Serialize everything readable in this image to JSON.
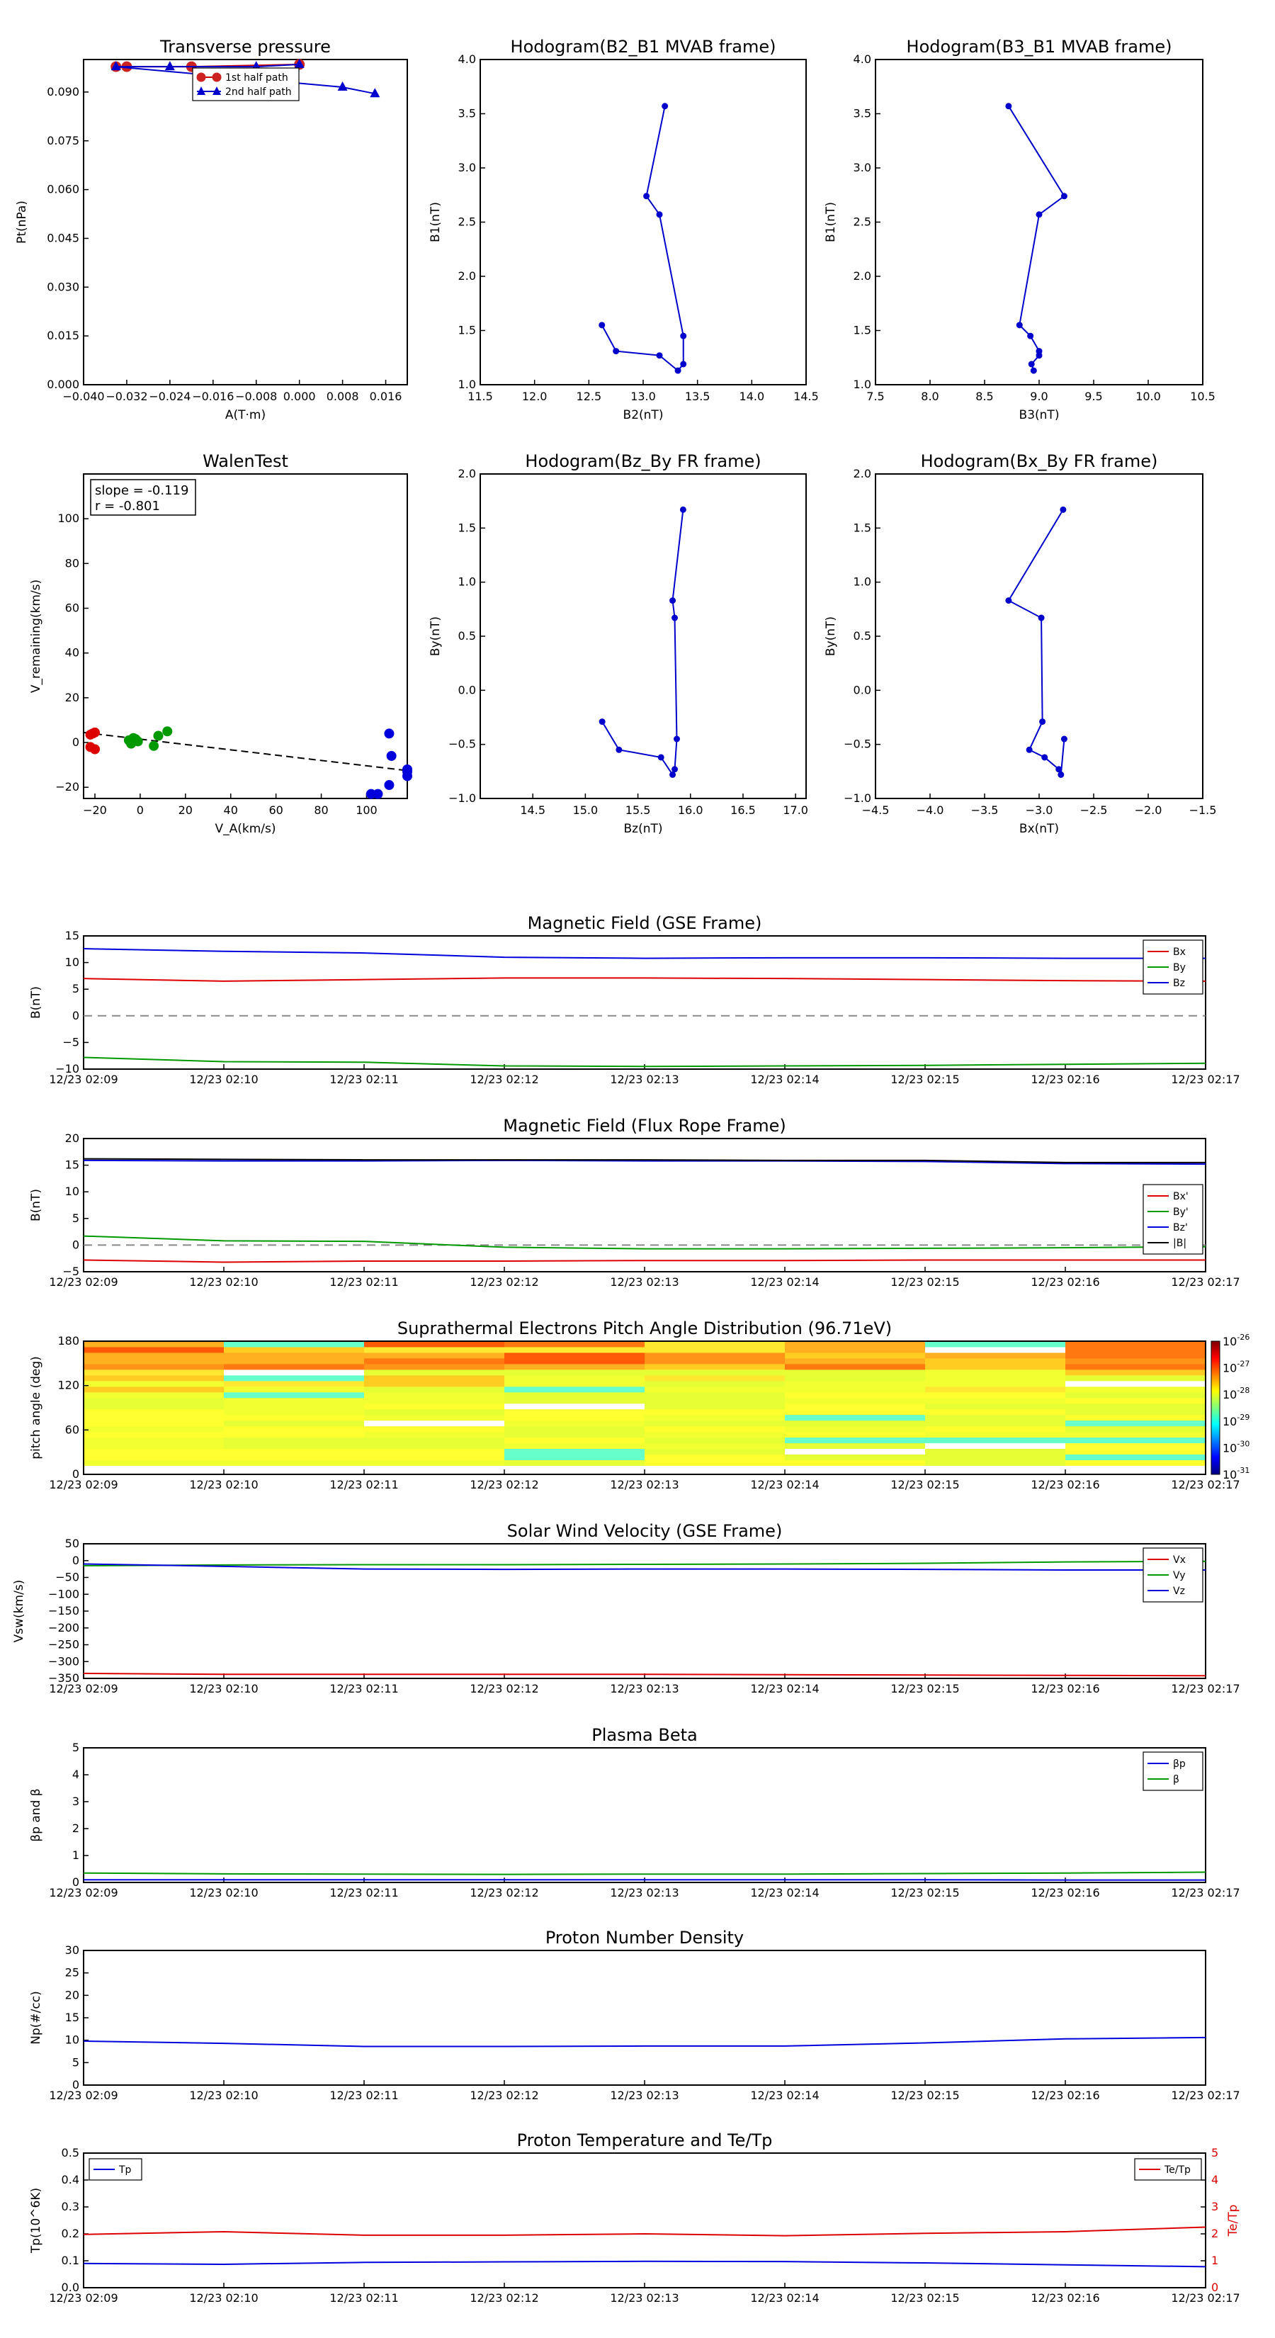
{
  "time_ticks": [
    "12/23 02:09",
    "12/23 02:10",
    "12/23 02:11",
    "12/23 02:12",
    "12/23 02:13",
    "12/23 02:14",
    "12/23 02:15",
    "12/23 02:16",
    "12/23 02:17"
  ],
  "chart_data": [
    {
      "id": "transverse-pressure",
      "type": "line",
      "title": "Transverse pressure",
      "xlabel": "A(T·m)",
      "ylabel": "Pt(nPa)",
      "xlim": [
        -0.04,
        0.02
      ],
      "ylim": [
        0.0,
        0.1
      ],
      "xticks": [
        "−0.040",
        "−0.032",
        "−0.024",
        "−0.016",
        "−0.008",
        "0.000",
        "0.008",
        "0.016"
      ],
      "yticks": [
        "0.000",
        "0.015",
        "0.030",
        "0.045",
        "0.060",
        "0.075",
        "0.090"
      ],
      "legend_position": "upper-center",
      "series": [
        {
          "name": "1st half path",
          "color": "#cc0000",
          "marker": "circle",
          "points": [
            [
              -0.034,
              0.0978
            ],
            [
              -0.032,
              0.0978
            ],
            [
              -0.02,
              0.0978
            ],
            [
              0.0,
              0.0985
            ]
          ]
        },
        {
          "name": "2nd half path",
          "color": "#0000cc",
          "marker": "triangle",
          "points": [
            [
              0.0,
              0.0985
            ],
            [
              -0.008,
              0.0978
            ],
            [
              -0.024,
              0.0978
            ],
            [
              -0.034,
              0.0978
            ],
            [
              0.008,
              0.0915
            ],
            [
              0.014,
              0.0895
            ]
          ]
        }
      ]
    },
    {
      "id": "hodogram-b2-b1",
      "type": "line",
      "title": "Hodogram(B2_B1 MVAB frame)",
      "xlabel": "B2(nT)",
      "ylabel": "B1(nT)",
      "xlim": [
        11.5,
        14.5
      ],
      "ylim": [
        1.0,
        4.0
      ],
      "xticks": [
        "11.5",
        "12.0",
        "12.5",
        "13.0",
        "13.5",
        "14.0",
        "14.5"
      ],
      "yticks": [
        "1.0",
        "1.5",
        "2.0",
        "2.5",
        "3.0",
        "3.5",
        "4.0"
      ],
      "color": "#0000cc",
      "points": [
        [
          13.2,
          3.57
        ],
        [
          13.03,
          2.74
        ],
        [
          13.15,
          2.57
        ],
        [
          13.37,
          1.45
        ],
        [
          13.37,
          1.19
        ],
        [
          13.32,
          1.13
        ],
        [
          13.15,
          1.27
        ],
        [
          12.75,
          1.31
        ],
        [
          12.62,
          1.55
        ]
      ]
    },
    {
      "id": "hodogram-b3-b1",
      "type": "line",
      "title": "Hodogram(B3_B1 MVAB frame)",
      "xlabel": "B3(nT)",
      "ylabel": "B1(nT)",
      "xlim": [
        7.5,
        10.5
      ],
      "ylim": [
        1.0,
        4.0
      ],
      "xticks": [
        "7.5",
        "8.0",
        "8.5",
        "9.0",
        "9.5",
        "10.0",
        "10.5"
      ],
      "yticks": [
        "1.0",
        "1.5",
        "2.0",
        "2.5",
        "3.0",
        "3.5",
        "4.0"
      ],
      "color": "#0000cc",
      "points": [
        [
          8.72,
          3.57
        ],
        [
          9.23,
          2.74
        ],
        [
          9.0,
          2.57
        ],
        [
          8.82,
          1.55
        ],
        [
          8.92,
          1.45
        ],
        [
          9.0,
          1.31
        ],
        [
          9.0,
          1.27
        ],
        [
          8.93,
          1.19
        ],
        [
          8.95,
          1.13
        ]
      ]
    },
    {
      "id": "walen-test",
      "type": "scatter",
      "title": "WalenTest",
      "xlabel": "V_A(km/s)",
      "ylabel": "V_remaining(km/s)",
      "xlim": [
        -25,
        118
      ],
      "ylim": [
        -25,
        120
      ],
      "xticks": [
        "−20",
        "0",
        "20",
        "40",
        "60",
        "80",
        "100"
      ],
      "yticks": [
        "−20",
        "0",
        "20",
        "40",
        "60",
        "80",
        "100"
      ],
      "annotation": [
        "slope = -0.119",
        "r = -0.801"
      ],
      "fit_line": {
        "slope": -0.119,
        "intercept": 1.5,
        "color": "#000000"
      },
      "series": [
        {
          "color": "#dd0000",
          "points": [
            [
              -22,
              3.5
            ],
            [
              -21,
              4
            ],
            [
              -20,
              4.5
            ],
            [
              -20,
              -3
            ],
            [
              -22,
              -2
            ]
          ]
        },
        {
          "color": "#009900",
          "points": [
            [
              -5,
              1
            ],
            [
              -4,
              -0.5
            ],
            [
              -3,
              2
            ],
            [
              -2,
              1.5
            ],
            [
              -1,
              0.5
            ],
            [
              -4,
              0
            ],
            [
              6,
              -1.5
            ],
            [
              8,
              3
            ],
            [
              12,
              5
            ]
          ]
        },
        {
          "color": "#0000dd",
          "points": [
            [
              102,
              -23
            ],
            [
              105,
              -23
            ],
            [
              110,
              4
            ],
            [
              111,
              -6
            ],
            [
              110,
              -19
            ],
            [
              118,
              -12
            ],
            [
              118,
              -13
            ],
            [
              118,
              -15
            ]
          ]
        }
      ]
    },
    {
      "id": "hodogram-bz-by",
      "type": "line",
      "title": "Hodogram(Bz_By FR frame)",
      "xlabel": "Bz(nT)",
      "ylabel": "By(nT)",
      "xlim": [
        14.0,
        17.1
      ],
      "ylim": [
        -1.0,
        2.0
      ],
      "xticks": [
        "14.5",
        "15.0",
        "15.5",
        "16.0",
        "16.5",
        "17.0"
      ],
      "yticks": [
        "−1.0",
        "−0.5",
        "0.0",
        "0.5",
        "1.0",
        "1.5",
        "2.0"
      ],
      "color": "#0000cc",
      "points": [
        [
          15.93,
          1.67
        ],
        [
          15.83,
          0.83
        ],
        [
          15.85,
          0.67
        ],
        [
          15.87,
          -0.45
        ],
        [
          15.85,
          -0.73
        ],
        [
          15.83,
          -0.78
        ],
        [
          15.72,
          -0.62
        ],
        [
          15.32,
          -0.55
        ],
        [
          15.16,
          -0.29
        ]
      ]
    },
    {
      "id": "hodogram-bx-by",
      "type": "line",
      "title": "Hodogram(Bx_By FR frame)",
      "xlabel": "Bx(nT)",
      "ylabel": "By(nT)",
      "xlim": [
        -4.5,
        -1.5
      ],
      "ylim": [
        -1.0,
        2.0
      ],
      "xticks": [
        "−4.5",
        "−4.0",
        "−3.5",
        "−3.0",
        "−2.5",
        "−2.0",
        "−1.5"
      ],
      "yticks": [
        "−1.0",
        "−0.5",
        "0.0",
        "0.5",
        "1.0",
        "1.5",
        "2.0"
      ],
      "color": "#0000cc",
      "points": [
        [
          -2.78,
          1.67
        ],
        [
          -3.28,
          0.83
        ],
        [
          -2.98,
          0.67
        ],
        [
          -2.97,
          -0.29
        ],
        [
          -3.09,
          -0.55
        ],
        [
          -2.95,
          -0.62
        ],
        [
          -2.82,
          -0.73
        ],
        [
          -2.8,
          -0.78
        ],
        [
          -2.77,
          -0.45
        ]
      ]
    },
    {
      "id": "magnetic-field-gse",
      "type": "line",
      "title": "Magnetic Field (GSE Frame)",
      "ylabel": "B(nT)",
      "ylim": [
        -10,
        15
      ],
      "yticks": [
        "−10",
        "−5",
        "0",
        "5",
        "10",
        "15"
      ],
      "zero_line": true,
      "legend_position": "upper-right",
      "x": [
        0,
        1,
        2,
        3,
        4,
        5,
        6,
        7,
        8
      ],
      "series": [
        {
          "name": "Bx",
          "color": "#dd0000",
          "values": [
            7.0,
            6.5,
            6.8,
            7.1,
            7.1,
            7.0,
            6.8,
            6.6,
            6.5
          ]
        },
        {
          "name": "By",
          "color": "#009900",
          "values": [
            -7.8,
            -8.6,
            -8.7,
            -9.4,
            -9.5,
            -9.4,
            -9.3,
            -9.1,
            -8.9
          ]
        },
        {
          "name": "Bz",
          "color": "#0000dd",
          "values": [
            12.6,
            12.1,
            11.8,
            11.0,
            10.8,
            10.9,
            10.9,
            10.8,
            10.8
          ]
        }
      ]
    },
    {
      "id": "magnetic-field-flux-rope",
      "type": "line",
      "title": "Magnetic Field (Flux Rope Frame)",
      "ylabel": "B(nT)",
      "ylim": [
        -5,
        20
      ],
      "yticks": [
        "−5",
        "0",
        "5",
        "10",
        "15",
        "20"
      ],
      "zero_line": true,
      "legend_position": "right",
      "x": [
        0,
        1,
        2,
        3,
        4,
        5,
        6,
        7,
        8
      ],
      "series": [
        {
          "name": "Bx'",
          "color": "#dd0000",
          "values": [
            -2.8,
            -3.2,
            -3.0,
            -3.0,
            -2.9,
            -2.9,
            -2.8,
            -2.8,
            -2.8
          ]
        },
        {
          "name": "By'",
          "color": "#009900",
          "values": [
            1.7,
            0.8,
            0.7,
            -0.4,
            -0.7,
            -0.7,
            -0.6,
            -0.5,
            -0.3
          ]
        },
        {
          "name": "Bz'",
          "color": "#0000dd",
          "values": [
            15.9,
            15.8,
            15.8,
            15.9,
            15.8,
            15.8,
            15.7,
            15.3,
            15.2
          ]
        },
        {
          "name": "|B|",
          "color": "#000000",
          "values": [
            16.2,
            16.1,
            16.0,
            16.0,
            16.0,
            15.9,
            15.9,
            15.5,
            15.5
          ]
        }
      ]
    },
    {
      "id": "pitch-angle-distribution",
      "type": "heatmap",
      "title": "Suprathermal Electrons Pitch Angle Distribution (96.71eV)",
      "ylabel": "pitch angle (deg)",
      "ylim": [
        0,
        180
      ],
      "yticks": [
        "0",
        "60",
        "120",
        "180"
      ],
      "colorbar_ticks": [
        "10<sup>-26</sup>",
        "10<sup>-27</sup>",
        "10<sup>-28</sup>",
        "10<sup>-29</sup>",
        "10<sup>-30</sup>",
        "10<sup>-31</sup>"
      ],
      "colorbar_labels": [
        [
          "10",
          "-26"
        ],
        [
          "10",
          "-27"
        ],
        [
          "10",
          "-28"
        ],
        [
          "10",
          "-29"
        ],
        [
          "10",
          "-30"
        ],
        [
          "10",
          "-31"
        ]
      ],
      "colorbar_range_log": [
        -31,
        -26
      ]
    },
    {
      "id": "solar-wind-velocity",
      "type": "line",
      "title": "Solar Wind Velocity (GSE Frame)",
      "ylabel": "Vsw(km/s)",
      "ylim": [
        -350,
        50
      ],
      "yticks": [
        "−350",
        "−300",
        "−250",
        "−200",
        "−150",
        "−100",
        "−50",
        "0",
        "50"
      ],
      "legend_position": "upper-right",
      "x": [
        0,
        1,
        2,
        3,
        4,
        5,
        6,
        7,
        8
      ],
      "series": [
        {
          "name": "Vx",
          "color": "#dd0000",
          "values": [
            -335,
            -338,
            -338,
            -338,
            -338,
            -339,
            -340,
            -341,
            -342
          ]
        },
        {
          "name": "Vy",
          "color": "#009900",
          "values": [
            -15,
            -13,
            -12,
            -12,
            -11,
            -10,
            -8,
            -4,
            -2
          ]
        },
        {
          "name": "Vz",
          "color": "#0000dd",
          "values": [
            -10,
            -17,
            -25,
            -26,
            -25,
            -25,
            -26,
            -28,
            -28
          ]
        }
      ]
    },
    {
      "id": "plasma-beta",
      "type": "line",
      "title": "Plasma Beta",
      "ylabel": "βp and β",
      "ylim": [
        0,
        5
      ],
      "yticks": [
        "0",
        "1",
        "2",
        "3",
        "4",
        "5"
      ],
      "legend_position": "upper-right",
      "x": [
        0,
        1,
        2,
        3,
        4,
        5,
        6,
        7,
        8
      ],
      "series": [
        {
          "name": "βp",
          "color": "#0000dd",
          "values": [
            0.1,
            0.1,
            0.1,
            0.1,
            0.1,
            0.1,
            0.1,
            0.09,
            0.09
          ]
        },
        {
          "name": "β",
          "color": "#009900",
          "values": [
            0.35,
            0.32,
            0.31,
            0.3,
            0.31,
            0.31,
            0.33,
            0.35,
            0.38
          ]
        }
      ]
    },
    {
      "id": "proton-number-density",
      "type": "line",
      "title": "Proton Number Density",
      "ylabel": "Np(#/cc)",
      "ylim": [
        0,
        30
      ],
      "yticks": [
        "0",
        "5",
        "10",
        "15",
        "20",
        "25",
        "30"
      ],
      "x": [
        0,
        1,
        2,
        3,
        4,
        5,
        6,
        7,
        8
      ],
      "series": [
        {
          "color": "#0000dd",
          "values": [
            9.8,
            9.3,
            8.6,
            8.6,
            8.7,
            8.7,
            9.4,
            10.3,
            10.6
          ]
        }
      ]
    },
    {
      "id": "proton-temperature",
      "type": "line",
      "title": "Proton Temperature and Te/Tp",
      "ylabel": "Tp(10^6K)",
      "ylabel_right": "Te/Tp",
      "ylim": [
        0,
        0.5
      ],
      "ylim_right": [
        0,
        5
      ],
      "yticks": [
        "0.0",
        "0.1",
        "0.2",
        "0.3",
        "0.4",
        "0.5"
      ],
      "yticks_right": [
        "0",
        "1",
        "2",
        "3",
        "4",
        "5"
      ],
      "x": [
        0,
        1,
        2,
        3,
        4,
        5,
        6,
        7,
        8
      ],
      "series": [
        {
          "name": "Tp",
          "color": "#0000dd",
          "axis": "left",
          "values": [
            0.09,
            0.087,
            0.094,
            0.096,
            0.098,
            0.097,
            0.092,
            0.085,
            0.078
          ]
        },
        {
          "name": "Te/Tp",
          "color": "#dd0000",
          "axis": "right",
          "values": [
            1.98,
            2.08,
            1.95,
            1.95,
            2.0,
            1.93,
            2.02,
            2.08,
            2.25
          ]
        }
      ]
    }
  ]
}
